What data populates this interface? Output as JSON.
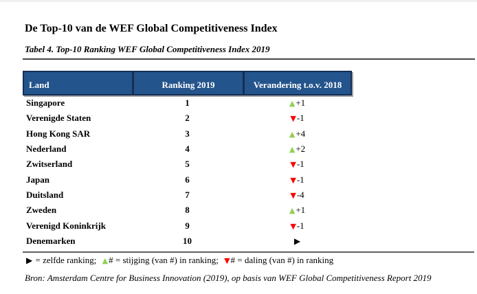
{
  "page": {
    "title": "De Top-10 van de WEF Global Competitiveness Index",
    "subtitle": "Tabel 4. Top-10 Ranking WEF Global Competitiveness Index 2019",
    "source": "Bron: Amsterdam Centre for Business Innovation (2019), op basis van WEF Global Competitiveness Report 2019"
  },
  "colors": {
    "header_bg": "#24548C",
    "header_border": "#152E54",
    "header_text": "#FFFFFF",
    "up_triangle": "#92D050",
    "down_triangle": "#FE0000",
    "same_triangle": "#000000",
    "rule": "#464646"
  },
  "icons": {
    "up": "▲",
    "down": "▼",
    "same": "▶"
  },
  "table": {
    "columns": [
      "Land",
      "Ranking 2019",
      "Verandering t.o.v. 2018"
    ],
    "rows": [
      {
        "land": "Singapore",
        "ranking": "1",
        "change": {
          "dir": "up",
          "value": "+1"
        }
      },
      {
        "land": "Verenigde Staten",
        "ranking": "2",
        "change": {
          "dir": "down",
          "value": "-1"
        }
      },
      {
        "land": "Hong Kong SAR",
        "ranking": "3",
        "change": {
          "dir": "up",
          "value": "+4"
        }
      },
      {
        "land": "Nederland",
        "ranking": "4",
        "change": {
          "dir": "up",
          "value": "+2"
        }
      },
      {
        "land": "Zwitserland",
        "ranking": "5",
        "change": {
          "dir": "down",
          "value": "-1"
        }
      },
      {
        "land": "Japan",
        "ranking": "6",
        "change": {
          "dir": "down",
          "value": "-1"
        }
      },
      {
        "land": "Duitsland",
        "ranking": "7",
        "change": {
          "dir": "down",
          "value": "-4"
        }
      },
      {
        "land": "Zweden",
        "ranking": "8",
        "change": {
          "dir": "up",
          "value": "+1"
        }
      },
      {
        "land": "Verenigd Koninkrijk",
        "ranking": "9",
        "change": {
          "dir": "down",
          "value": "-1"
        }
      },
      {
        "land": "Denemarken",
        "ranking": "10",
        "change": {
          "dir": "same",
          "value": ""
        }
      }
    ]
  },
  "legend": {
    "parts": [
      {
        "icon": "same",
        "text": " = zelfde ranking; "
      },
      {
        "icon": "up",
        "text": "# = stijging (van #) in ranking; "
      },
      {
        "icon": "down",
        "text": "# = daling (van #) in ranking"
      }
    ]
  }
}
